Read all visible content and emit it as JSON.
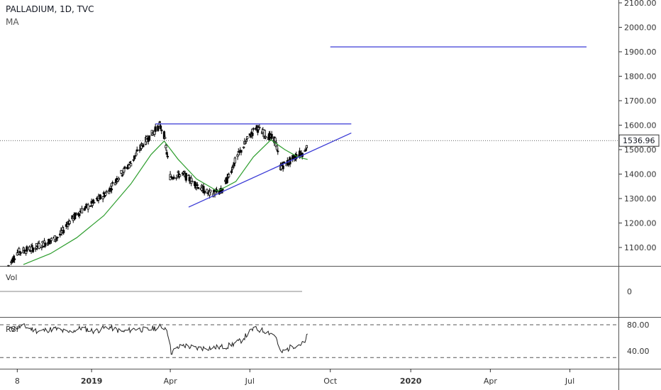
{
  "legend": {
    "symbol_line": "PALLADIUM, 1D, TVC",
    "indicator": "MA"
  },
  "panes": {
    "volume_label": "Vol",
    "volume_zero": "0",
    "rsi_label": "RSI"
  },
  "last_price_label": "1536.96",
  "colors": {
    "candle_body": "#000000",
    "ma": "#2e9e2e",
    "trendline": "#3a3ad6",
    "axis_text": "#333333",
    "grid_divider": "#555555",
    "price_tag_bg": "#ffffff"
  },
  "chart_data": {
    "type": "line",
    "title": "PALLADIUM, 1D, TVC",
    "price_axis": {
      "ticks": [
        "1100.00",
        "1200.00",
        "1300.00",
        "1400.00",
        "1500.00",
        "1600.00",
        "1700.00",
        "1800.00",
        "1900.00",
        "2000.00",
        "2100.00"
      ],
      "range": [
        1020,
        2110
      ]
    },
    "time_axis": {
      "tick_labels": [
        "8",
        "2019",
        "Apr",
        "Jul",
        "Oct",
        "2020",
        "Apr",
        "Jul"
      ],
      "tick_dates": [
        "2018-10-08",
        "2019-01-01",
        "2019-04-01",
        "2019-07-01",
        "2019-10-01",
        "2020-01-01",
        "2020-04-01",
        "2020-07-01"
      ]
    },
    "price_series": [
      {
        "date": "2018-09-28",
        "close": 1025
      },
      {
        "date": "2018-10-08",
        "close": 1080
      },
      {
        "date": "2018-10-25",
        "close": 1095
      },
      {
        "date": "2018-11-10",
        "close": 1120
      },
      {
        "date": "2018-11-25",
        "close": 1145
      },
      {
        "date": "2018-12-05",
        "close": 1200
      },
      {
        "date": "2018-12-20",
        "close": 1250
      },
      {
        "date": "2019-01-05",
        "close": 1285
      },
      {
        "date": "2019-01-20",
        "close": 1330
      },
      {
        "date": "2019-02-01",
        "close": 1390
      },
      {
        "date": "2019-02-15",
        "close": 1445
      },
      {
        "date": "2019-02-28",
        "close": 1520
      },
      {
        "date": "2019-03-10",
        "close": 1560
      },
      {
        "date": "2019-03-20",
        "close": 1600
      },
      {
        "date": "2019-03-25",
        "close": 1560
      },
      {
        "date": "2019-04-01",
        "close": 1390
      },
      {
        "date": "2019-04-15",
        "close": 1400
      },
      {
        "date": "2019-04-30",
        "close": 1360
      },
      {
        "date": "2019-05-15",
        "close": 1320
      },
      {
        "date": "2019-05-30",
        "close": 1330
      },
      {
        "date": "2019-06-15",
        "close": 1460
      },
      {
        "date": "2019-06-28",
        "close": 1540
      },
      {
        "date": "2019-07-08",
        "close": 1590
      },
      {
        "date": "2019-07-20",
        "close": 1560
      },
      {
        "date": "2019-07-30",
        "close": 1540
      },
      {
        "date": "2019-08-05",
        "close": 1430
      },
      {
        "date": "2019-08-15",
        "close": 1450
      },
      {
        "date": "2019-08-25",
        "close": 1480
      },
      {
        "date": "2019-09-02",
        "close": 1490
      },
      {
        "date": "2019-09-05",
        "close": 1536.96
      }
    ],
    "ma_series": [
      {
        "date": "2018-10-15",
        "value": 1030
      },
      {
        "date": "2018-11-15",
        "value": 1075
      },
      {
        "date": "2018-12-15",
        "value": 1140
      },
      {
        "date": "2019-01-15",
        "value": 1230
      },
      {
        "date": "2019-02-15",
        "value": 1360
      },
      {
        "date": "2019-03-10",
        "value": 1480
      },
      {
        "date": "2019-03-25",
        "value": 1535
      },
      {
        "date": "2019-04-10",
        "value": 1460
      },
      {
        "date": "2019-05-01",
        "value": 1380
      },
      {
        "date": "2019-05-25",
        "value": 1330
      },
      {
        "date": "2019-06-15",
        "value": 1370
      },
      {
        "date": "2019-07-05",
        "value": 1470
      },
      {
        "date": "2019-07-25",
        "value": 1540
      },
      {
        "date": "2019-08-10",
        "value": 1500
      },
      {
        "date": "2019-08-25",
        "value": 1470
      },
      {
        "date": "2019-09-05",
        "value": 1460
      }
    ],
    "annotations": {
      "resistance_line": {
        "from": "2019-03-15",
        "to": "2019-10-25",
        "price": 1605
      },
      "ascending_trendline": {
        "from": {
          "date": "2019-04-22",
          "price": 1265
        },
        "to": {
          "date": "2019-10-25",
          "price": 1568
        }
      },
      "target_line": {
        "from": "2019-10-01",
        "to": "2020-07-20",
        "price": 1920
      }
    },
    "volume": {
      "zero_label": "0"
    },
    "rsi": {
      "ticks": [
        "80.00",
        "40.00"
      ],
      "upper": 80,
      "lower": 30,
      "range": [
        25,
        90
      ],
      "series": [
        {
          "date": "2018-09-28",
          "value": 72
        },
        {
          "date": "2018-10-15",
          "value": 78
        },
        {
          "date": "2018-11-01",
          "value": 70
        },
        {
          "date": "2018-11-20",
          "value": 74
        },
        {
          "date": "2018-12-05",
          "value": 68
        },
        {
          "date": "2018-12-20",
          "value": 75
        },
        {
          "date": "2019-01-05",
          "value": 70
        },
        {
          "date": "2019-01-20",
          "value": 77
        },
        {
          "date": "2019-02-05",
          "value": 69
        },
        {
          "date": "2019-02-20",
          "value": 74
        },
        {
          "date": "2019-03-05",
          "value": 72
        },
        {
          "date": "2019-03-20",
          "value": 77
        },
        {
          "date": "2019-03-28",
          "value": 75
        },
        {
          "date": "2019-04-02",
          "value": 38
        },
        {
          "date": "2019-04-15",
          "value": 49
        },
        {
          "date": "2019-05-01",
          "value": 44
        },
        {
          "date": "2019-05-20",
          "value": 45
        },
        {
          "date": "2019-06-05",
          "value": 47
        },
        {
          "date": "2019-06-20",
          "value": 55
        },
        {
          "date": "2019-07-05",
          "value": 74
        },
        {
          "date": "2019-07-20",
          "value": 70
        },
        {
          "date": "2019-07-30",
          "value": 64
        },
        {
          "date": "2019-08-05",
          "value": 37
        },
        {
          "date": "2019-08-20",
          "value": 48
        },
        {
          "date": "2019-09-02",
          "value": 52
        },
        {
          "date": "2019-09-05",
          "value": 66
        }
      ]
    },
    "grid": false,
    "legend_position": "top-left"
  }
}
